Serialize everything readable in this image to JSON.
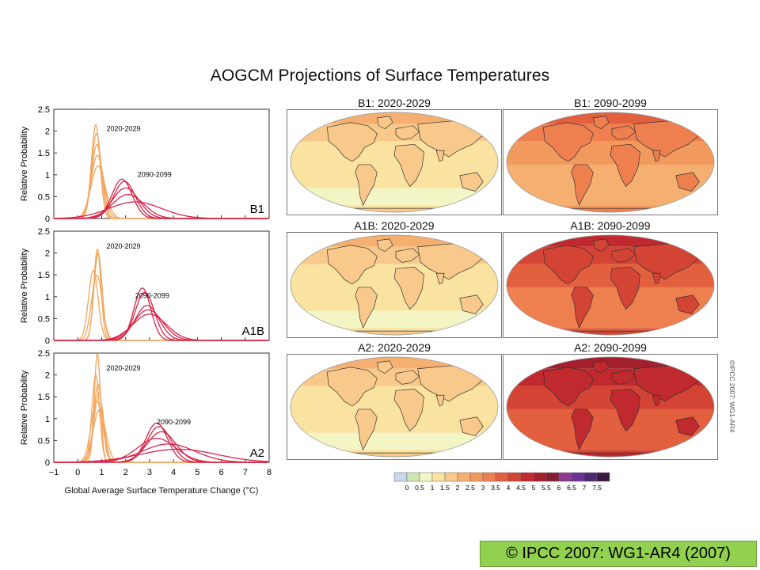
{
  "title": "AOGCM Projections of Surface Temperatures",
  "colors": {
    "early_curves": "#f4a55c",
    "late_curves": "#d9244a",
    "footer_bg": "#92d050"
  },
  "chart_data": [
    {
      "type": "line",
      "panel": "B1",
      "xlim": [
        -1,
        8
      ],
      "ylim": [
        0,
        2.5
      ],
      "yticks": [
        "0",
        "0.5",
        "1",
        "1.5",
        "2",
        "2.5"
      ],
      "ylabel": "Relative Probability",
      "annotations": [
        "2020-2029",
        "2090-2099"
      ],
      "early_peaks": [
        {
          "mu": 0.75,
          "sigma": 0.18,
          "peak": 2.15
        },
        {
          "mu": 0.78,
          "sigma": 0.2,
          "peak": 1.95
        },
        {
          "mu": 0.8,
          "sigma": 0.22,
          "peak": 1.7
        },
        {
          "mu": 0.82,
          "sigma": 0.26,
          "peak": 1.45
        },
        {
          "mu": 0.85,
          "sigma": 0.3,
          "peak": 1.2
        }
      ],
      "late_peaks": [
        {
          "mu": 1.85,
          "sigma": 0.42,
          "peak": 0.9
        },
        {
          "mu": 1.95,
          "sigma": 0.45,
          "peak": 0.85
        },
        {
          "mu": 2.0,
          "sigma": 0.55,
          "peak": 0.7
        },
        {
          "mu": 2.1,
          "sigma": 0.65,
          "peak": 0.55
        },
        {
          "mu": 2.4,
          "sigma": 1.1,
          "peak": 0.38
        }
      ]
    },
    {
      "type": "line",
      "panel": "A1B",
      "xlim": [
        -1,
        8
      ],
      "ylim": [
        0,
        2.5
      ],
      "yticks": [
        "0",
        "0.5",
        "1",
        "1.5",
        "2",
        "2.5"
      ],
      "ylabel": "Relative Probability",
      "annotations": [
        "2020-2029",
        "2090-2099"
      ],
      "early_peaks": [
        {
          "mu": 0.82,
          "sigma": 0.15,
          "peak": 2.1
        },
        {
          "mu": 0.85,
          "sigma": 0.17,
          "peak": 2.0
        },
        {
          "mu": 0.65,
          "sigma": 0.2,
          "peak": 1.6
        },
        {
          "mu": 0.8,
          "sigma": 0.22,
          "peak": 1.5
        }
      ],
      "late_peaks": [
        {
          "mu": 2.7,
          "sigma": 0.35,
          "peak": 1.2
        },
        {
          "mu": 2.8,
          "sigma": 0.4,
          "peak": 1.1
        },
        {
          "mu": 2.9,
          "sigma": 0.5,
          "peak": 0.8
        },
        {
          "mu": 2.95,
          "sigma": 0.6,
          "peak": 0.7
        },
        {
          "mu": 3.0,
          "sigma": 0.7,
          "peak": 0.6
        }
      ]
    },
    {
      "type": "line",
      "panel": "A2",
      "xlim": [
        -1,
        8
      ],
      "ylim": [
        0,
        2.5
      ],
      "xticks": [
        "−1",
        "0",
        "1",
        "2",
        "3",
        "4",
        "5",
        "6",
        "7",
        "8"
      ],
      "yticks": [
        "0",
        "0.5",
        "1",
        "1.5",
        "2",
        "2.5"
      ],
      "ylabel": "Relative Probability",
      "annotations": [
        "2020-2029",
        "2090-2099"
      ],
      "early_peaks": [
        {
          "mu": 0.82,
          "sigma": 0.13,
          "peak": 2.5
        },
        {
          "mu": 0.75,
          "sigma": 0.16,
          "peak": 2.0
        },
        {
          "mu": 0.85,
          "sigma": 0.18,
          "peak": 1.8
        },
        {
          "mu": 0.88,
          "sigma": 0.2,
          "peak": 1.6
        },
        {
          "mu": 0.8,
          "sigma": 0.24,
          "peak": 1.4
        },
        {
          "mu": 0.9,
          "sigma": 0.26,
          "peak": 1.2
        }
      ],
      "late_peaks": [
        {
          "mu": 3.3,
          "sigma": 0.45,
          "peak": 0.9
        },
        {
          "mu": 3.4,
          "sigma": 0.5,
          "peak": 0.82
        },
        {
          "mu": 3.5,
          "sigma": 0.6,
          "peak": 0.7
        },
        {
          "mu": 3.3,
          "sigma": 0.8,
          "peak": 0.55
        },
        {
          "mu": 3.8,
          "sigma": 1.1,
          "peak": 0.42
        },
        {
          "mu": 4.2,
          "sigma": 1.6,
          "peak": 0.3
        }
      ]
    }
  ],
  "xlabel": "Global Average Surface Temperature Change (°C)",
  "maps": [
    {
      "title": "B1: 2020-2029",
      "level": 0.9
    },
    {
      "title": "B1: 2090-2099",
      "level": 2.3
    },
    {
      "title": "A1B: 2020-2029",
      "level": 0.95
    },
    {
      "title": "A1B: 2090-2099",
      "level": 3.2
    },
    {
      "title": "A2: 2020-2029",
      "level": 0.9
    },
    {
      "title": "A2: 2090-2099",
      "level": 3.8
    }
  ],
  "colorbar": {
    "labels": [
      "0",
      "0.5",
      "1",
      "1.5",
      "2",
      "2.5",
      "3",
      "3.5",
      "4",
      "4.5",
      "5",
      "5.5",
      "6",
      "6.5",
      "7",
      "7.5"
    ],
    "colors": [
      "#c9d7ea",
      "#cfe6b0",
      "#f4f5c4",
      "#fae3a0",
      "#f8c98a",
      "#f5b071",
      "#f29a5e",
      "#ee7f4e",
      "#e3603f",
      "#d44434",
      "#c0292d",
      "#a31f2c",
      "#851d33",
      "#8b3a8e",
      "#6c3096",
      "#4b2a74",
      "#3a1a3e"
    ]
  },
  "copyright_vertical": "©IPCC 2007: WG1-AR4",
  "footer": "© IPCC 2007: WG1-AR4 (2007)"
}
